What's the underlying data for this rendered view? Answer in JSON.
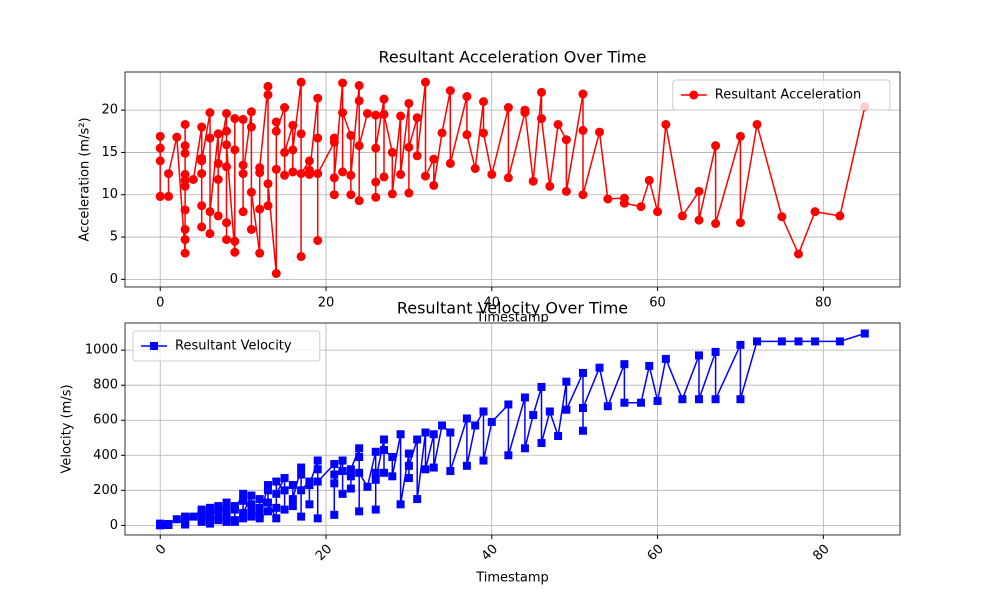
{
  "chart_data": [
    {
      "type": "line",
      "title": "Resultant Acceleration Over Time",
      "xlabel": "Timestamp",
      "ylabel": "Acceleration (m/s²)",
      "x": [
        0,
        0,
        0,
        0,
        0,
        1,
        1,
        2,
        3,
        3,
        3,
        3,
        3,
        3,
        3,
        3,
        3,
        3,
        4,
        5,
        5,
        5,
        5,
        5,
        5,
        6,
        6,
        6,
        6,
        7,
        7,
        7,
        7,
        8,
        8,
        8,
        8,
        8,
        8,
        9,
        9,
        9,
        9,
        10,
        10,
        10,
        10,
        11,
        11,
        11,
        11,
        12,
        12,
        12,
        12,
        13,
        13,
        13,
        13,
        14,
        14,
        14,
        14,
        15,
        15,
        15,
        16,
        16,
        16,
        17,
        17,
        17,
        17,
        18,
        18,
        18,
        19,
        19,
        19,
        19,
        21,
        21,
        21,
        21,
        22,
        22,
        22,
        23,
        23,
        23,
        24,
        24,
        24,
        24,
        25,
        26,
        26,
        26,
        26,
        27,
        27,
        27,
        28,
        28,
        29,
        29,
        30,
        30,
        30,
        31,
        31,
        32,
        32,
        33,
        33,
        34,
        35,
        35,
        37,
        37,
        38,
        39,
        39,
        40,
        42,
        42,
        44,
        44,
        45,
        46,
        46,
        47,
        48,
        49,
        49,
        51,
        51,
        51,
        53,
        54,
        56,
        56,
        58,
        59,
        60,
        61,
        63,
        65,
        65,
        67,
        67,
        70,
        70,
        72,
        75,
        77,
        79,
        82,
        85
      ],
      "series": [
        {
          "name": "Resultant Acceleration",
          "color": "#ff0000",
          "marker": "circle",
          "values": [
            9.8,
            16.9,
            14,
            15.5,
            9.8,
            9.8,
            12.5,
            16.8,
            3.1,
            18.3,
            5.9,
            4.7,
            8.2,
            12.4,
            15.8,
            11,
            14.9,
            11.7,
            11.8,
            18,
            6.2,
            14.3,
            8.7,
            12.5,
            14,
            19.7,
            5.4,
            16.7,
            8,
            17.2,
            7.5,
            11.8,
            13.7,
            19.6,
            4.7,
            17.5,
            6.7,
            13.3,
            15.9,
            3.2,
            15.3,
            4.5,
            19,
            18.9,
            8,
            13.5,
            12.5,
            19.8,
            5.9,
            18,
            10.3,
            3.1,
            12.6,
            8.3,
            13.2,
            22.8,
            8.7,
            21.8,
            11.3,
            0.7,
            18.6,
            13,
            17.5,
            20.3,
            12.3,
            15,
            18.2,
            12.7,
            15.3,
            23.3,
            2.7,
            17.2,
            12.5,
            14,
            12.9,
            12.4,
            21.4,
            4.6,
            16.7,
            12.5,
            16.2,
            10,
            16.7,
            12,
            23.2,
            12.7,
            19.7,
            17,
            10,
            12.3,
            22.9,
            9.3,
            21.1,
            15.8,
            19.6,
            19.4,
            9.7,
            11.5,
            15.5,
            21.3,
            12.1,
            19.5,
            15,
            10.1,
            19.3,
            12.4,
            20.8,
            10.2,
            15.6,
            19.1,
            14.6,
            23.3,
            12.2,
            14.2,
            11.1,
            17.3,
            22.3,
            13.7,
            21.6,
            17.1,
            13.1,
            21,
            17.3,
            12.4,
            20.3,
            12,
            19.7,
            20,
            11.6,
            22.1,
            19,
            11,
            18.3,
            16.5,
            10.4,
            21.9,
            17.6,
            10,
            17.4,
            9.5,
            9.6,
            9,
            8.6,
            11.7,
            8,
            18.3,
            7.5,
            10.4,
            7,
            15.8,
            6.6,
            16.9,
            6.7,
            18.3,
            7.4,
            3,
            8,
            7.5,
            20.4
          ]
        }
      ],
      "xlim": [
        -4.25,
        89.25
      ],
      "ylim": [
        -0.9,
        24.5
      ],
      "xticks": [
        0,
        20,
        40,
        60,
        80
      ],
      "yticks": [
        0,
        5,
        10,
        15,
        20
      ],
      "grid": true,
      "legend": "upper right",
      "xtick_rotation": 0
    },
    {
      "type": "line",
      "title": "Resultant Velocity Over Time",
      "xlabel": "Timestamp",
      "ylabel": "Velocity (m/s)",
      "x": [
        0,
        0,
        0,
        0,
        0,
        1,
        1,
        2,
        3,
        3,
        3,
        3,
        3,
        3,
        3,
        3,
        3,
        3,
        4,
        5,
        5,
        5,
        5,
        5,
        5,
        6,
        6,
        6,
        6,
        7,
        7,
        7,
        7,
        8,
        8,
        8,
        8,
        8,
        8,
        9,
        9,
        9,
        9,
        10,
        10,
        10,
        10,
        11,
        11,
        11,
        11,
        12,
        12,
        12,
        12,
        13,
        13,
        13,
        13,
        14,
        14,
        14,
        14,
        15,
        15,
        15,
        16,
        16,
        16,
        17,
        17,
        17,
        17,
        18,
        18,
        18,
        19,
        19,
        19,
        19,
        21,
        21,
        21,
        21,
        22,
        22,
        22,
        23,
        23,
        23,
        24,
        24,
        24,
        24,
        25,
        26,
        26,
        26,
        26,
        27,
        27,
        27,
        28,
        28,
        29,
        29,
        30,
        30,
        30,
        31,
        31,
        32,
        32,
        33,
        33,
        34,
        35,
        35,
        37,
        37,
        38,
        39,
        39,
        40,
        42,
        42,
        44,
        44,
        45,
        46,
        46,
        47,
        48,
        49,
        49,
        51,
        51,
        51,
        53,
        54,
        56,
        56,
        58,
        59,
        60,
        61,
        63,
        65,
        65,
        67,
        67,
        70,
        70,
        72,
        75,
        77,
        79,
        82,
        85
      ],
      "series": [
        {
          "name": "Resultant Velocity",
          "color": "#0000ff",
          "marker": "square",
          "values": [
            0,
            5,
            10,
            3,
            2,
            2,
            8,
            35,
            20,
            50,
            10,
            45,
            30,
            40,
            5,
            25,
            48,
            35,
            50,
            90,
            20,
            60,
            30,
            80,
            45,
            100,
            10,
            70,
            40,
            110,
            30,
            90,
            50,
            130,
            40,
            80,
            20,
            100,
            60,
            20,
            110,
            30,
            90,
            180,
            40,
            140,
            70,
            170,
            50,
            120,
            80,
            60,
            150,
            100,
            40,
            230,
            80,
            200,
            130,
            40,
            250,
            100,
            180,
            270,
            90,
            200,
            230,
            110,
            150,
            330,
            50,
            290,
            200,
            250,
            120,
            230,
            370,
            40,
            320,
            250,
            350,
            60,
            290,
            240,
            370,
            180,
            310,
            280,
            210,
            320,
            440,
            80,
            390,
            300,
            220,
            420,
            90,
            300,
            260,
            490,
            300,
            430,
            390,
            280,
            520,
            120,
            410,
            270,
            340,
            490,
            150,
            530,
            320,
            520,
            330,
            570,
            530,
            310,
            610,
            340,
            570,
            650,
            370,
            590,
            690,
            400,
            730,
            440,
            630,
            790,
            470,
            650,
            510,
            820,
            660,
            870,
            540,
            670,
            900,
            680,
            920,
            700,
            700,
            910,
            710,
            950,
            720,
            970,
            720,
            990,
            720,
            1030,
            720,
            1050,
            1050,
            1050,
            1050,
            1050,
            1095
          ]
        }
      ],
      "xlim": [
        -4.25,
        89.25
      ],
      "ylim": [
        -55,
        1155
      ],
      "xticks": [
        0,
        20,
        40,
        60,
        80
      ],
      "yticks": [
        0,
        200,
        400,
        600,
        800,
        1000
      ],
      "grid": true,
      "legend": "upper left",
      "xtick_rotation": 45
    }
  ]
}
